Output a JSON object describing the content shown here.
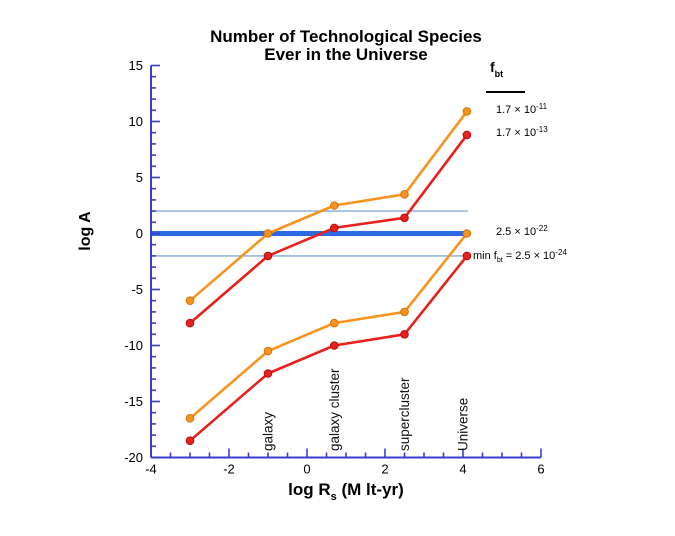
{
  "chart": {
    "title_line1": "Number of Technological Species",
    "title_line2": "Ever in the Universe",
    "ylabel": "log A",
    "xlabel_main": "log R",
    "xlabel_sub": "s",
    "xlabel_unit": " (M lt-yr)"
  },
  "legend": {
    "header_symbol": "f",
    "header_sub": "bt",
    "entries": [
      {
        "prefix": "",
        "sub": "",
        "mantissa": "1.7 × 10",
        "exp": "-11"
      },
      {
        "prefix": "",
        "sub": "",
        "mantissa": "1.7 × 10",
        "exp": "-13"
      },
      {
        "prefix": "",
        "sub": "",
        "mantissa": "2.5 × 10",
        "exp": "-22"
      },
      {
        "prefix": "min f",
        "sub": "bt",
        "mantissa": " = 2.5 × 10",
        "exp": "-24"
      }
    ]
  },
  "chart_data": {
    "type": "line",
    "title": "Number of Technological Species Ever in the Universe",
    "xlabel": "log R_s (M lt-yr)",
    "ylabel": "log A",
    "xlim": [
      -4,
      6
    ],
    "ylim": [
      -20,
      15
    ],
    "x_major_ticks": [
      -4,
      -2,
      0,
      2,
      4,
      6
    ],
    "x_minor_step": 0.5,
    "y_major_ticks": [
      15,
      10,
      5,
      0,
      -5,
      -10,
      -15,
      -20
    ],
    "y_minor_step": 1,
    "grid": false,
    "axis_color": "#3C3CCE",
    "tick_label_color": "#000000",
    "x": [
      -3,
      -1,
      0.7,
      2.5,
      4.1
    ],
    "series": [
      {
        "name": "f_bt = 1.7 × 10^-11",
        "color": "#F7941E",
        "marker_edge": "#D2730A",
        "marker": "circle",
        "values": [
          -6,
          0,
          2.5,
          3.5,
          10.9
        ]
      },
      {
        "name": "f_bt = 1.7 × 10^-13",
        "color": "#E8211C",
        "marker_edge": "#B30F0F",
        "marker": "circle",
        "values": [
          -8,
          -2,
          0.5,
          1.4,
          8.8
        ]
      },
      {
        "name": "f_bt = 2.5 × 10^-22",
        "color": "#F7941E",
        "marker_edge": "#D2730A",
        "marker": "circle",
        "values": [
          -16.5,
          -10.5,
          -8,
          -7,
          0
        ]
      },
      {
        "name": "min f_bt = 2.5 × 10^-24",
        "color": "#E8211C",
        "marker_edge": "#B30F0F",
        "marker": "circle",
        "values": [
          -18.5,
          -12.5,
          -10,
          -9,
          -2
        ]
      }
    ],
    "reference_lines": [
      {
        "y": 2,
        "weight": "thin",
        "color": "#85AADB",
        "x_start": -4,
        "x_end": 4.12
      },
      {
        "y": 0,
        "weight": "thick",
        "color": "#2B6AE0",
        "x_start": -4,
        "x_end": 4.1
      },
      {
        "y": -2,
        "weight": "thin",
        "color": "#85AADB",
        "x_start": -4,
        "x_end": 4.2
      }
    ],
    "scale_markers": [
      {
        "label": "galaxy",
        "x": -1
      },
      {
        "label": "galaxy cluster",
        "x": 0.7
      },
      {
        "label": "supercluster",
        "x": 2.5
      },
      {
        "label": "Universe",
        "x": 4.0
      }
    ],
    "legend_position": "right-of-curve-endpoints"
  }
}
